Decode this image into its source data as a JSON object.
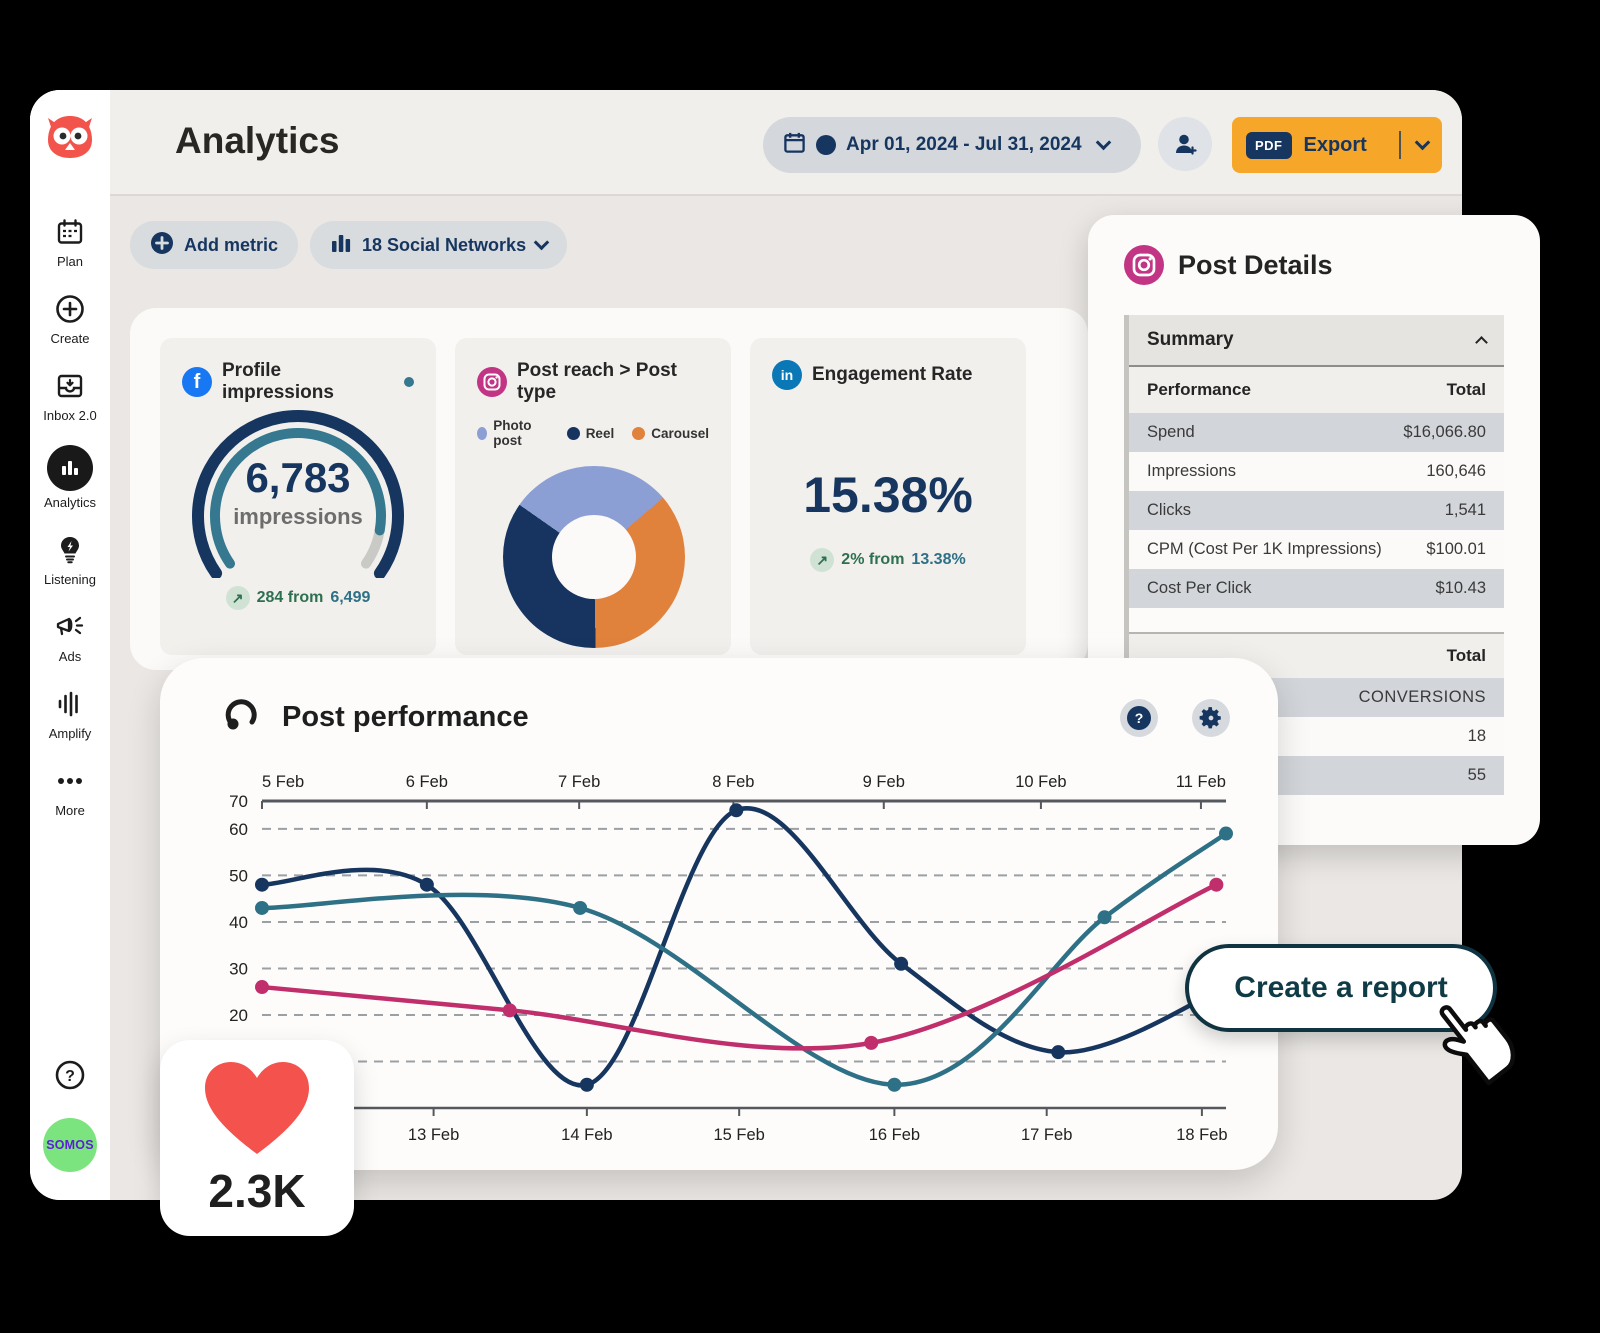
{
  "header": {
    "title": "Analytics",
    "date_range": "Apr 01, 2024 - Jul 31, 2024",
    "pdf_badge": "PDF",
    "export_label": "Export"
  },
  "toolbar": {
    "add_metric_label": "Add metric",
    "networks_label": "18 Social Networks"
  },
  "sidebar": {
    "items": [
      {
        "label": "Plan",
        "icon": "calendar-icon"
      },
      {
        "label": "Create",
        "icon": "plus-circle-icon"
      },
      {
        "label": "Inbox 2.0",
        "icon": "inbox-icon"
      },
      {
        "label": "Analytics",
        "icon": "bar-chart-icon",
        "active": true
      },
      {
        "label": "Listening",
        "icon": "lightbulb-icon"
      },
      {
        "label": "Ads",
        "icon": "megaphone-icon"
      },
      {
        "label": "Amplify",
        "icon": "equalizer-icon"
      },
      {
        "label": "More",
        "icon": "ellipsis-icon"
      }
    ],
    "brand_badge": "SOMOS"
  },
  "cards": {
    "profile_impressions": {
      "network": "facebook",
      "title": "Profile impressions",
      "value": "6,783",
      "unit": "impressions",
      "delta": "284 from",
      "previous": "6,499",
      "gauge": {
        "progress": 0.9,
        "outer_color": "#16355f",
        "inner_color": "#36788f",
        "rest_color": "#c9c9c6"
      }
    },
    "post_reach": {
      "network": "instagram",
      "title": "Post reach > Post type",
      "legend": [
        {
          "label": "Photo post",
          "color": "#8b9fd4"
        },
        {
          "label": "Reel",
          "color": "#16345f"
        },
        {
          "label": "Carousel",
          "color": "#e0813c"
        }
      ],
      "slices_percent": [
        29,
        36,
        35
      ],
      "slice_order": [
        "Photo post",
        "Carousel",
        "Reel"
      ],
      "slice_colors": [
        "#8b9fd4",
        "#e0813c",
        "#16345f"
      ],
      "start_angle_deg": -55
    },
    "engagement": {
      "network": "linkedin",
      "title": "Engagement Rate",
      "value": "15.38%",
      "delta": "2% from",
      "previous": "13.38%"
    }
  },
  "add_metric_floating": "Add metric",
  "post_details": {
    "title": "Post Details",
    "summary_label": "Summary",
    "performance_header": {
      "left": "Performance",
      "right": "Total"
    },
    "performance_rows": [
      {
        "label": "Spend",
        "value": "$16,066.80",
        "tone": "gray"
      },
      {
        "label": "Impressions",
        "value": "160,646",
        "tone": "white"
      },
      {
        "label": "Clicks",
        "value": "1,541",
        "tone": "gray"
      },
      {
        "label": "CPM (Cost Per 1K Impressions)",
        "value": "$100.01",
        "tone": "white"
      },
      {
        "label": "Cost Per Click",
        "value": "$10.43",
        "tone": "gray"
      }
    ],
    "total_header": "Total",
    "conversion_rows": [
      {
        "value": "CONVERSIONS",
        "tone": "gray"
      },
      {
        "value": "18",
        "tone": "white"
      },
      {
        "value": "55",
        "tone": "gray"
      }
    ]
  },
  "post_performance": {
    "title": "Post performance",
    "chart_data": {
      "type": "line",
      "y_axis_top_label": 70,
      "y_ticks": [
        60,
        50,
        40,
        30,
        20
      ],
      "y_gridlines": [
        60,
        50,
        40,
        30,
        20,
        10
      ],
      "ylim": [
        0,
        66
      ],
      "grid": "dashed",
      "top_dates": [
        {
          "label": "5 Feb",
          "x": 0.0
        },
        {
          "label": "6 Feb",
          "x": 0.171
        },
        {
          "label": "7 Feb",
          "x": 0.329
        },
        {
          "label": "8 Feb",
          "x": 0.489
        },
        {
          "label": "9 Feb",
          "x": 0.645
        },
        {
          "label": "10 Feb",
          "x": 0.808
        },
        {
          "label": "11 Feb",
          "x": 0.974
        }
      ],
      "bottom_dates": [
        {
          "label": "13 Feb",
          "x": 0.178
        },
        {
          "label": "14 Feb",
          "x": 0.337
        },
        {
          "label": "15 Feb",
          "x": 0.495
        },
        {
          "label": "16 Feb",
          "x": 0.656
        },
        {
          "label": "17 Feb",
          "x": 0.814
        },
        {
          "label": "18 Feb",
          "x": 0.975
        }
      ],
      "series": [
        {
          "name": "navy",
          "color": "#16355f",
          "skip_last_dot": true,
          "points": [
            [
              0.0,
              48
            ],
            [
              0.171,
              48
            ],
            [
              0.337,
              5
            ],
            [
              0.492,
              64
            ],
            [
              0.663,
              31
            ],
            [
              0.826,
              12
            ],
            [
              1.0,
              26
            ]
          ]
        },
        {
          "name": "teal",
          "color": "#2e7086",
          "skip_last_dot": false,
          "points": [
            [
              0.0,
              43
            ],
            [
              0.33,
              43
            ],
            [
              0.656,
              5
            ],
            [
              0.874,
              41
            ],
            [
              1.0,
              59
            ]
          ]
        },
        {
          "name": "pink",
          "color": "#c02f6b",
          "skip_last_dot": false,
          "points": [
            [
              0.0,
              26
            ],
            [
              0.257,
              21
            ],
            [
              0.632,
              14
            ],
            [
              0.99,
              48
            ]
          ]
        }
      ]
    }
  },
  "create_report_label": "Create a report",
  "likes_badge": {
    "count": "2.3K",
    "icon": "heart-icon"
  }
}
